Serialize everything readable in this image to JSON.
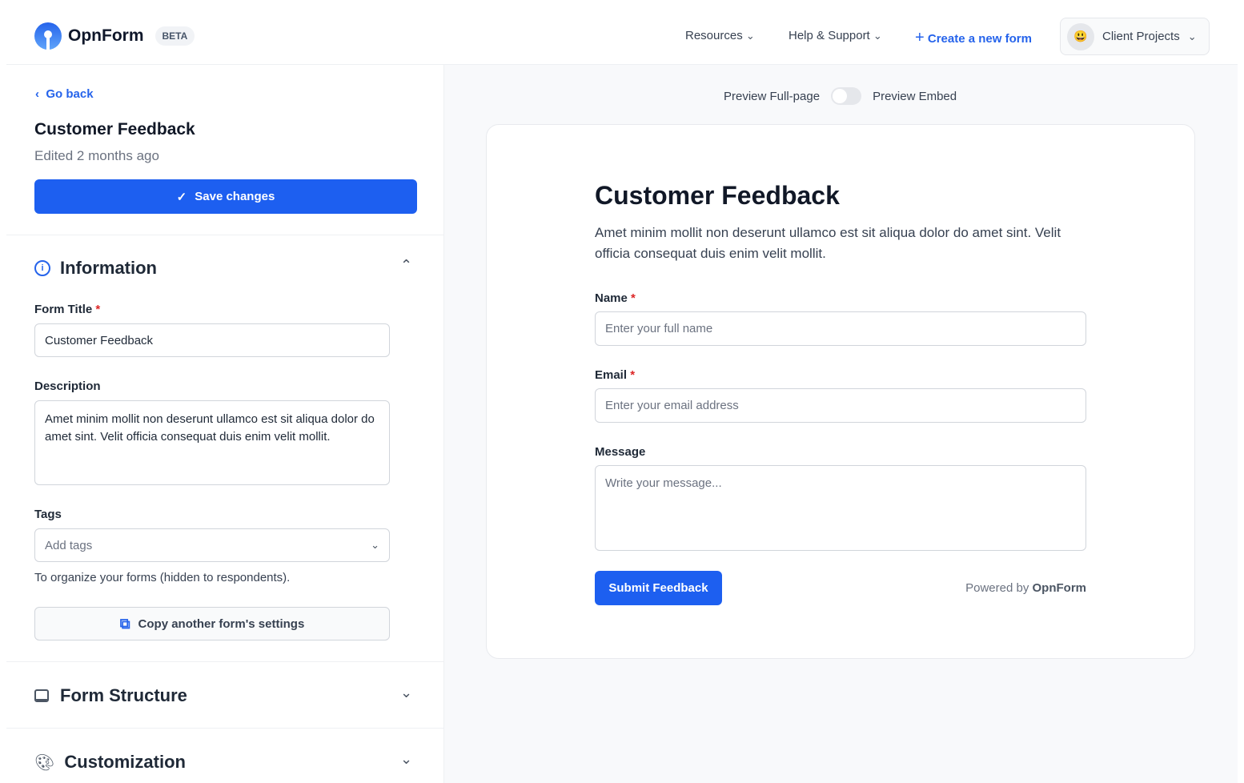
{
  "header": {
    "brand": "OpnForm",
    "badge": "BETA",
    "resources": "Resources",
    "help": "Help & Support",
    "create": "Create a new form",
    "workspace": "Client Projects",
    "workspace_emoji": "😃"
  },
  "sidebar": {
    "back": "Go back",
    "title": "Customer Feedback",
    "edited": "Edited 2 months ago",
    "save": "Save changes",
    "information": "Information",
    "form_title_label": "Form Title",
    "form_title_value": "Customer Feedback",
    "description_label": "Description",
    "description_value": "Amet minim mollit non deserunt ullamco est sit aliqua dolor do amet sint. Velit officia consequat duis enim velit mollit.",
    "tags_label": "Tags",
    "tags_placeholder": "Add tags",
    "tags_help": "To organize your forms (hidden to respondents).",
    "copy": "Copy another form's settings",
    "structure": "Form Structure",
    "customization": "Customization"
  },
  "preview": {
    "full": "Preview Full-page",
    "embed": "Preview Embed",
    "toggle_on": false,
    "title": "Customer Feedback",
    "description": "Amet minim mollit non deserunt ullamco est sit aliqua dolor do amet sint. Velit officia consequat duis enim velit mollit.",
    "name_label": "Name",
    "name_ph": "Enter your full name",
    "email_label": "Email",
    "email_ph": "Enter your email address",
    "message_label": "Message",
    "message_ph": "Write your message...",
    "submit": "Submit Feedback",
    "powered": "Powered by",
    "powered_brand": "OpnForm"
  },
  "colors": {
    "accent": "#1d5ff0"
  }
}
